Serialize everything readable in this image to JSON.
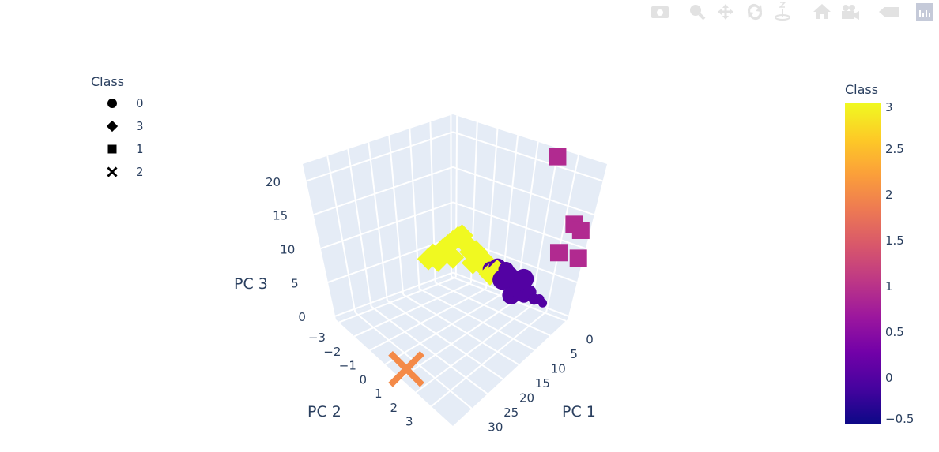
{
  "modebar": {
    "icons": [
      "camera-icon",
      "zoom-icon",
      "pan-icon",
      "orbit-rotation-icon",
      "turntable-rotation-icon",
      "reset-camera-home-icon",
      "default-camera-view-icon",
      "toggle-hover-icon",
      "plotly-logo-icon"
    ]
  },
  "chart_data": {
    "type": "scatter3d",
    "axes": {
      "x": {
        "title": "PC 1",
        "range": [
          -0.5,
          36
        ],
        "ticks": [
          0,
          5,
          10,
          15,
          20,
          25,
          30
        ]
      },
      "y": {
        "title": "PC 2",
        "range": [
          -3.2,
          4.4
        ],
        "ticks": [
          -3,
          -2,
          -1,
          0,
          1,
          2,
          3
        ]
      },
      "z": {
        "title": "PC 3",
        "range": [
          -0.5,
          22.5
        ],
        "ticks": [
          0,
          5,
          10,
          15,
          20
        ]
      }
    },
    "grid": true,
    "background": "#e5ecf6",
    "legend": {
      "title": "Class",
      "position": "top-left",
      "items": [
        {
          "name": "0",
          "symbol": "circle"
        },
        {
          "name": "3",
          "symbol": "diamond"
        },
        {
          "name": "1",
          "symbol": "square"
        },
        {
          "name": "2",
          "symbol": "x"
        }
      ]
    },
    "colorbar": {
      "title": "Class",
      "range": [
        -0.5,
        3
      ],
      "ticks": [
        -0.5,
        0,
        0.5,
        1,
        1.5,
        2,
        2.5,
        3
      ],
      "colorscale": "Plasma",
      "stops": [
        "#0d0887",
        "#46039f",
        "#7201a8",
        "#9c179e",
        "#bd3786",
        "#d8576b",
        "#ed7953",
        "#fb9f3a",
        "#fdca26",
        "#f0f921"
      ]
    },
    "series": [
      {
        "name": "0",
        "class": 0,
        "symbol": "circle",
        "color": "#5302a3",
        "points": [
          [
            6.8,
            0.6,
            5.7,
            14
          ],
          [
            6.8,
            1.0,
            6.4,
            16
          ],
          [
            6.8,
            1.36,
            5.0,
            18
          ],
          [
            6.8,
            1.66,
            5.7,
            20
          ],
          [
            6.8,
            1.97,
            3.4,
            16
          ],
          [
            6.8,
            2.27,
            4.6,
            14
          ],
          [
            6.8,
            2.58,
            6.4,
            18
          ],
          [
            6.8,
            2.73,
            4.1,
            12
          ],
          [
            6.8,
            3.03,
            5.0,
            12
          ],
          [
            6.8,
            3.34,
            4.3,
            10
          ],
          [
            6.8,
            3.64,
            4.6,
            9
          ],
          [
            6.8,
            3.87,
            4.3,
            8
          ],
          [
            6.8,
            1.51,
            6.6,
            14
          ],
          [
            6.8,
            2.12,
            5.5,
            15
          ]
        ]
      },
      {
        "name": "3",
        "class": 3,
        "symbol": "diamond",
        "color": "#f0f921",
        "points": [
          [
            6.8,
            -3.2,
            3.2
          ],
          [
            6.8,
            -2.9,
            4.1
          ],
          [
            6.8,
            -2.59,
            3.6
          ],
          [
            6.8,
            -2.29,
            5.5
          ],
          [
            6.8,
            -1.98,
            6.4
          ],
          [
            6.8,
            -1.68,
            7.3
          ],
          [
            6.8,
            -1.38,
            8.2
          ],
          [
            6.8,
            -1.15,
            8.7
          ],
          [
            6.8,
            -0.92,
            7.8
          ],
          [
            6.8,
            -0.62,
            6.9
          ],
          [
            6.8,
            -0.31,
            7.3
          ],
          [
            6.8,
            0.0,
            5.9
          ],
          [
            6.8,
            0.3,
            6.4
          ],
          [
            6.8,
            0.6,
            5.0
          ],
          [
            6.8,
            1.0,
            5.9
          ],
          [
            6.8,
            -0.46,
            5.5
          ],
          [
            6.8,
            -1.68,
            5.0
          ]
        ]
      },
      {
        "name": "1",
        "class": 1,
        "symbol": "square",
        "color": "#b12a90",
        "points": [
          [
            0.6,
            2.23,
            21.8
          ],
          [
            0.6,
            3.69,
            13.3
          ],
          [
            0.6,
            4.1,
            12.8
          ],
          [
            0.6,
            3.2,
            8.7
          ],
          [
            0.6,
            4.32,
            8.9
          ]
        ]
      },
      {
        "name": "2",
        "class": 2,
        "symbol": "x",
        "color": "#f48a48",
        "points": [
          [
            33.8,
            0.94,
            0.0
          ]
        ]
      }
    ]
  }
}
